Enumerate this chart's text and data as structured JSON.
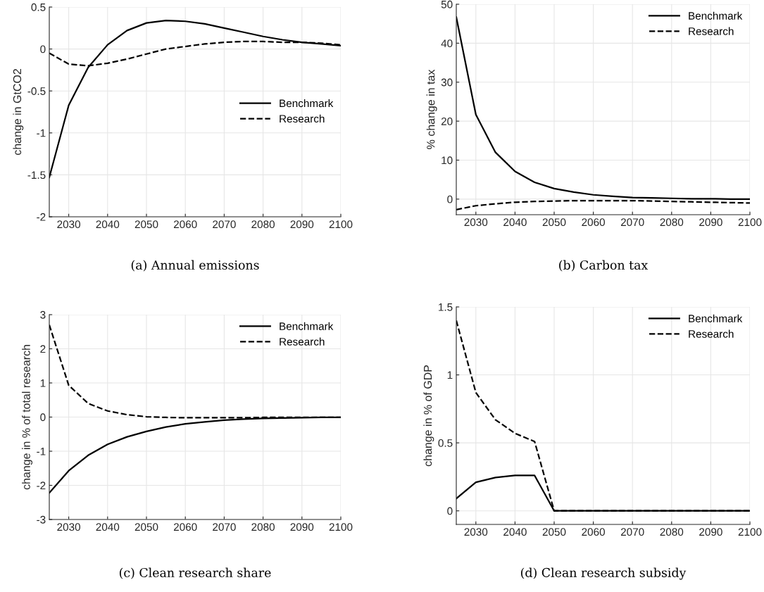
{
  "chart_data": [
    {
      "type": "line",
      "title": "(a) Annual emissions",
      "ylabel": "change in GtCO2",
      "x": [
        2025,
        2030,
        2035,
        2040,
        2045,
        2050,
        2055,
        2060,
        2065,
        2070,
        2075,
        2080,
        2085,
        2090,
        2095,
        2100
      ],
      "xlim": [
        2025,
        2100
      ],
      "xticks": [
        2030,
        2040,
        2050,
        2060,
        2070,
        2080,
        2090,
        2100
      ],
      "ylim": [
        -2,
        0.5
      ],
      "yticks": [
        -2,
        -1.5,
        -1,
        -0.5,
        0,
        0.5
      ],
      "grid": true,
      "legend": "right",
      "series": [
        {
          "name": "Benchmark",
          "color": "#000000",
          "line_style": "solid",
          "values": [
            -1.53,
            -0.67,
            -0.22,
            0.05,
            0.22,
            0.31,
            0.34,
            0.33,
            0.3,
            0.25,
            0.2,
            0.15,
            0.11,
            0.08,
            0.06,
            0.04
          ]
        },
        {
          "name": "Research",
          "color": "#000000",
          "line_style": "dashed",
          "values": [
            -0.05,
            -0.18,
            -0.2,
            -0.17,
            -0.12,
            -0.06,
            0.0,
            0.03,
            0.06,
            0.08,
            0.09,
            0.09,
            0.08,
            0.08,
            0.07,
            0.05
          ]
        }
      ]
    },
    {
      "type": "line",
      "title": "(b) Carbon tax",
      "ylabel": "% change in tax",
      "x": [
        2025,
        2030,
        2035,
        2040,
        2045,
        2050,
        2055,
        2060,
        2065,
        2070,
        2075,
        2080,
        2085,
        2090,
        2095,
        2100
      ],
      "xlim": [
        2025,
        2100
      ],
      "xticks": [
        2030,
        2040,
        2050,
        2060,
        2070,
        2080,
        2090,
        2100
      ],
      "ylim": [
        -4,
        50
      ],
      "yticks": [
        0,
        10,
        20,
        30,
        40,
        50
      ],
      "grid": true,
      "legend": "top right",
      "series": [
        {
          "name": "Benchmark",
          "color": "#000000",
          "line_style": "solid",
          "values": [
            46.7,
            21.7,
            12.0,
            7.1,
            4.3,
            2.7,
            1.8,
            1.1,
            0.7,
            0.4,
            0.3,
            0.2,
            0.1,
            0.1,
            0.0,
            0.0
          ]
        },
        {
          "name": "Research",
          "color": "#000000",
          "line_style": "dashed",
          "values": [
            -2.7,
            -1.7,
            -1.2,
            -0.8,
            -0.6,
            -0.5,
            -0.4,
            -0.4,
            -0.4,
            -0.4,
            -0.5,
            -0.6,
            -0.7,
            -0.8,
            -0.9,
            -1.0
          ]
        }
      ]
    },
    {
      "type": "line",
      "title": "(c) Clean research share",
      "ylabel": "change in % of total research",
      "x": [
        2025,
        2030,
        2035,
        2040,
        2045,
        2050,
        2055,
        2060,
        2065,
        2070,
        2075,
        2080,
        2085,
        2090,
        2095,
        2100
      ],
      "xlim": [
        2025,
        2100
      ],
      "xticks": [
        2030,
        2040,
        2050,
        2060,
        2070,
        2080,
        2090,
        2100
      ],
      "ylim": [
        -3,
        3
      ],
      "yticks": [
        -3,
        -2,
        -1,
        0,
        1,
        2,
        3
      ],
      "grid": true,
      "legend": "top right",
      "series": [
        {
          "name": "Benchmark",
          "color": "#000000",
          "line_style": "solid",
          "values": [
            -2.22,
            -1.57,
            -1.12,
            -0.8,
            -0.58,
            -0.42,
            -0.29,
            -0.2,
            -0.14,
            -0.09,
            -0.06,
            -0.04,
            -0.03,
            -0.02,
            -0.01,
            -0.01
          ]
        },
        {
          "name": "Research",
          "color": "#000000",
          "line_style": "dashed",
          "values": [
            2.7,
            0.93,
            0.4,
            0.18,
            0.07,
            0.01,
            -0.01,
            -0.02,
            -0.02,
            -0.02,
            -0.02,
            -0.01,
            -0.01,
            -0.01,
            -0.01,
            -0.01
          ]
        }
      ]
    },
    {
      "type": "line",
      "title": "(d) Clean research subsidy",
      "ylabel": "change in % of GDP",
      "x": [
        2025,
        2030,
        2035,
        2040,
        2045,
        2050,
        2055,
        2060,
        2065,
        2070,
        2075,
        2080,
        2085,
        2090,
        2095,
        2100
      ],
      "xlim": [
        2025,
        2100
      ],
      "xticks": [
        2030,
        2040,
        2050,
        2060,
        2070,
        2080,
        2090,
        2100
      ],
      "ylim": [
        -0.1,
        1.5
      ],
      "yticks": [
        0,
        0.5,
        1,
        1.5
      ],
      "grid": true,
      "legend": "top right",
      "series": [
        {
          "name": "Benchmark",
          "color": "#000000",
          "line_style": "solid",
          "values": [
            0.09,
            0.21,
            0.245,
            0.26,
            0.26,
            0,
            0,
            0,
            0,
            0,
            0,
            0,
            0,
            0,
            0,
            0
          ]
        },
        {
          "name": "Research",
          "color": "#000000",
          "line_style": "dashed",
          "values": [
            1.4,
            0.87,
            0.67,
            0.57,
            0.51,
            0,
            0,
            0,
            0,
            0,
            0,
            0,
            0,
            0,
            0,
            0
          ]
        }
      ]
    }
  ]
}
